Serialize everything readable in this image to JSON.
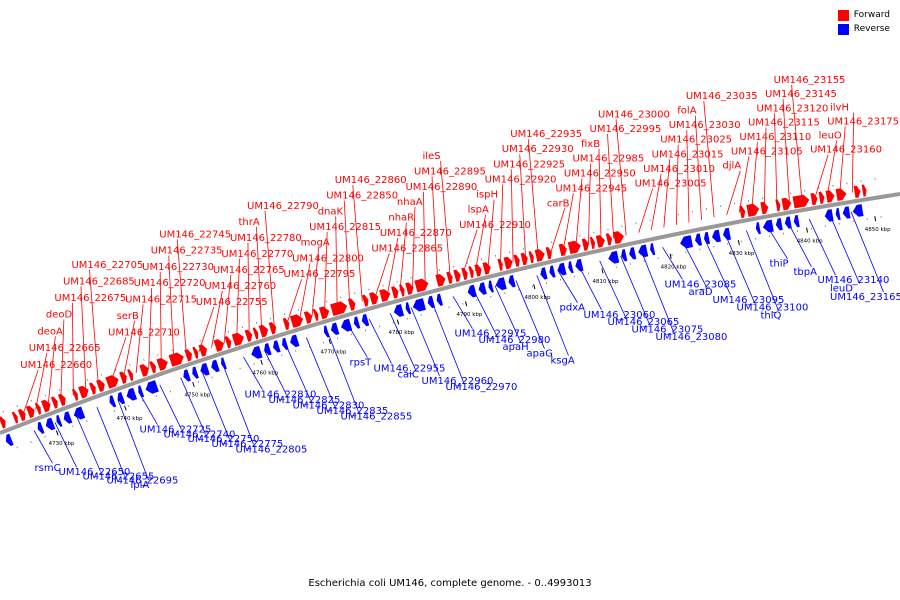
{
  "legend": {
    "items": [
      {
        "label": "Forward",
        "color": "#ff0000"
      },
      {
        "label": "Reverse",
        "color": "#0000ff"
      }
    ]
  },
  "caption": "Escherichia coli UM146, complete genome. - 0..4993013",
  "colors": {
    "forward": "#ff0000",
    "reverse": "#0000ff",
    "backbone": "#999999",
    "leader": "#000000"
  },
  "scale": {
    "ticks": [
      "4730 kbp",
      "4740 kbp",
      "4750 kbp",
      "4760 kbp",
      "4770 kbp",
      "4780 kbp",
      "4790 kbp",
      "4800 kbp",
      "4810 kbp",
      "4820 kbp",
      "4830 kbp",
      "4840 kbp",
      "4850 kbp"
    ]
  },
  "forward_labels": [
    "UM146_22660",
    "UM146_22665",
    "deoA",
    "deoD",
    "UM146_22675",
    "UM146_22685",
    "UM146_22705",
    "UM146_22710",
    "serB",
    "UM146_22715",
    "UM146_22720",
    "UM146_22730",
    "UM146_22735",
    "UM146_22745",
    "UM146_22755",
    "UM146_22760",
    "UM146_22765",
    "UM146_22770",
    "UM146_22780",
    "thrA",
    "UM146_22790",
    "UM146_22795",
    "UM146_22800",
    "mogA",
    "UM146_22815",
    "dnaK",
    "UM146_22850",
    "UM146_22860",
    "UM146_22865",
    "UM146_22870",
    "nhaR",
    "nhaA",
    "UM146_22890",
    "UM146_22895",
    "ileS",
    "UM146_22910",
    "lspA",
    "ispH",
    "UM146_22920",
    "UM146_22925",
    "UM146_22930",
    "UM146_22935",
    "carB",
    "UM146_22945",
    "UM146_22950",
    "UM146_22985",
    "fixB",
    "UM146_22995",
    "UM146_23000",
    "UM146_23005",
    "UM146_23010",
    "UM146_23015",
    "UM146_23025",
    "UM146_23030",
    "folA",
    "UM146_23035",
    "djlA",
    "UM146_23105",
    "UM146_23110",
    "UM146_23115",
    "UM146_23120",
    "UM146_23145",
    "UM146_23155",
    "UM146_23160",
    "leuO",
    "UM146_23175",
    "ilvH"
  ],
  "reverse_labels": [
    "rsmC",
    "UM146_22650",
    "UM146_22655",
    "UM146_22695",
    "lplA",
    "UM146_22725",
    "UM146_22740",
    "UM146_22750",
    "UM146_22775",
    "UM146_22805",
    "UM146_22810",
    "UM146_22825",
    "UM146_22830",
    "UM146_22835",
    "UM146_22855",
    "rpsT",
    "UM146_22955",
    "caiC",
    "UM146_22960",
    "UM146_22970",
    "UM146_22975",
    "UM146_22980",
    "apaH",
    "apaG",
    "ksgA",
    "pdxA",
    "UM146_23060",
    "UM146_23065",
    "UM146_23075",
    "UM146_23080",
    "UM146_23085",
    "araD",
    "UM146_23095",
    "UM146_23100",
    "thiQ",
    "thiP",
    "tbpA",
    "UM146_23140",
    "leuD",
    "UM146_23165"
  ]
}
